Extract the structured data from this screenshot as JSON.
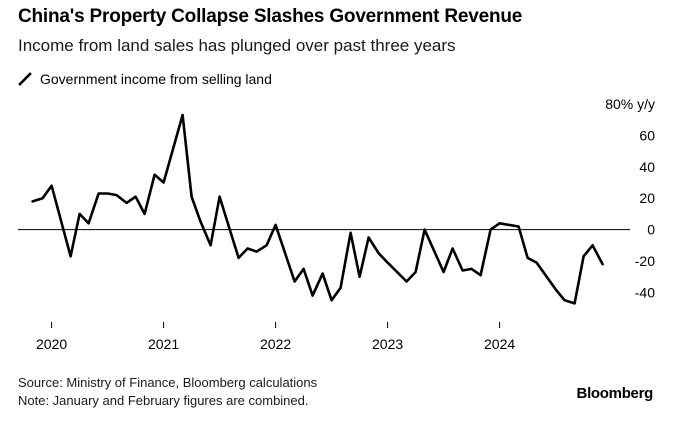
{
  "header": {
    "title": "China's Property Collapse Slashes Government Revenue",
    "subtitle": "Income from land sales has plunged over past three years"
  },
  "legend": {
    "label": "Government income from selling land",
    "icon": "diagonal-line-icon"
  },
  "footer": {
    "source": "Source: Ministry of Finance, Bloomberg calculations",
    "note": "Note: January and February figures are combined."
  },
  "brand": "Bloomberg",
  "colors": {
    "line": "#000000",
    "zero_line": "#000000",
    "tick": "#000000"
  },
  "chart_data": {
    "type": "line",
    "unit_label": "80% y/y",
    "y_ticks": [
      60,
      40,
      20,
      0,
      -20,
      -40
    ],
    "ylim": [
      -55,
      80
    ],
    "x_ticks": [
      "2020",
      "2021",
      "2022",
      "2023",
      "2024"
    ],
    "x_tick_positions": [
      2020,
      2021,
      2022,
      2023,
      2024
    ],
    "xlim": [
      2019.7,
      2024.95
    ],
    "grid": false,
    "legend_position": "top-left",
    "series": [
      {
        "name": "Government income from selling land",
        "points": [
          [
            2019.83,
            18
          ],
          [
            2019.92,
            20
          ],
          [
            2020.0,
            28
          ],
          [
            2020.17,
            -17
          ],
          [
            2020.25,
            10
          ],
          [
            2020.33,
            4
          ],
          [
            2020.42,
            23
          ],
          [
            2020.5,
            23
          ],
          [
            2020.58,
            22
          ],
          [
            2020.67,
            17
          ],
          [
            2020.75,
            21
          ],
          [
            2020.83,
            10
          ],
          [
            2020.92,
            35
          ],
          [
            2021.0,
            30
          ],
          [
            2021.17,
            73
          ],
          [
            2021.25,
            21
          ],
          [
            2021.33,
            5
          ],
          [
            2021.42,
            -10
          ],
          [
            2021.5,
            21
          ],
          [
            2021.67,
            -18
          ],
          [
            2021.75,
            -12
          ],
          [
            2021.83,
            -14
          ],
          [
            2021.92,
            -10
          ],
          [
            2022.0,
            3
          ],
          [
            2022.17,
            -33
          ],
          [
            2022.25,
            -25
          ],
          [
            2022.33,
            -42
          ],
          [
            2022.42,
            -28
          ],
          [
            2022.5,
            -45
          ],
          [
            2022.58,
            -37
          ],
          [
            2022.67,
            -2
          ],
          [
            2022.75,
            -30
          ],
          [
            2022.83,
            -5
          ],
          [
            2022.92,
            -15
          ],
          [
            2023.0,
            -21
          ],
          [
            2023.17,
            -33
          ],
          [
            2023.25,
            -27
          ],
          [
            2023.33,
            0
          ],
          [
            2023.5,
            -27
          ],
          [
            2023.58,
            -12
          ],
          [
            2023.67,
            -26
          ],
          [
            2023.75,
            -25
          ],
          [
            2023.83,
            -29
          ],
          [
            2023.92,
            0
          ],
          [
            2024.0,
            4
          ],
          [
            2024.17,
            2
          ],
          [
            2024.25,
            -18
          ],
          [
            2024.33,
            -21
          ],
          [
            2024.5,
            -38
          ],
          [
            2024.58,
            -45
          ],
          [
            2024.67,
            -47
          ],
          [
            2024.75,
            -17
          ],
          [
            2024.83,
            -10
          ],
          [
            2024.92,
            -22
          ]
        ]
      }
    ]
  }
}
